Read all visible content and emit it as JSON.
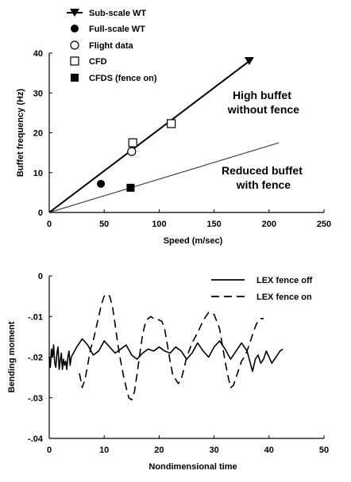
{
  "chart_data": [
    {
      "type": "scatter",
      "xlabel": "Speed (m/sec)",
      "ylabel": "Buffet frequency (Hz)",
      "xlim": [
        0,
        250
      ],
      "ylim": [
        0,
        40
      ],
      "xticks": [
        0,
        50,
        100,
        150,
        200,
        250
      ],
      "yticks": [
        0,
        10,
        20,
        30,
        40
      ],
      "grid": false,
      "legend_position": "top-left",
      "series": [
        {
          "name": "Sub-scale WT",
          "marker": "filled-triangle-down",
          "line": true,
          "x": [
            0,
            182
          ],
          "y": [
            0,
            38
          ]
        },
        {
          "name": "Full-scale WT",
          "marker": "filled-circle",
          "x": [
            47
          ],
          "y": [
            7.2
          ]
        },
        {
          "name": "Flight data",
          "marker": "open-circle",
          "x": [
            75
          ],
          "y": [
            15.3
          ]
        },
        {
          "name": "CFD",
          "marker": "open-square",
          "x": [
            76,
            111
          ],
          "y": [
            17.5,
            22.3
          ]
        },
        {
          "name": "CFDS (fence on)",
          "marker": "filled-square",
          "x": [
            74
          ],
          "y": [
            6.2
          ]
        }
      ],
      "reference_lines": [
        {
          "x": [
            0,
            209
          ],
          "y": [
            0,
            17.5
          ],
          "color": "#444444"
        }
      ],
      "annotations": [
        {
          "lines": [
            "High buffet",
            "without fence"
          ],
          "x": 195,
          "y": 28.5
        },
        {
          "lines": [
            "Reduced buffet",
            "with fence"
          ],
          "x": 195,
          "y": 9.6
        }
      ]
    },
    {
      "type": "line",
      "xlabel": "Nondimensional time",
      "ylabel": "Bending moment",
      "xlim": [
        0,
        50
      ],
      "ylim": [
        -0.04,
        0
      ],
      "xticks": [
        0,
        10,
        20,
        30,
        40,
        50
      ],
      "yticks": [
        0,
        -0.01,
        -0.02,
        -0.03,
        -0.04
      ],
      "ytick_labels": [
        "0",
        "-.01",
        "-.02",
        "-.03",
        "-.04"
      ],
      "grid": false,
      "legend_position": "top-right",
      "series": [
        {
          "name": "LEX fence off",
          "style": "solid",
          "x": [
            0,
            0.2,
            0.4,
            0.6,
            0.8,
            1.0,
            1.2,
            1.4,
            1.6,
            1.8,
            2.0,
            2.2,
            2.4,
            2.6,
            2.8,
            3.0,
            3.2,
            3.4,
            3.6,
            3.8,
            4.0,
            5,
            6,
            7,
            8,
            9,
            10,
            11,
            12,
            13,
            14,
            15,
            16,
            17,
            18,
            19,
            20,
            21,
            22,
            23,
            24,
            25,
            26,
            27,
            28,
            29,
            30,
            31,
            32,
            33,
            34,
            35,
            36,
            37,
            37.5,
            38,
            38.5,
            39,
            39.5,
            40,
            40.5,
            41,
            41.5,
            42,
            42.5
          ],
          "y": [
            -0.02,
            -0.0225,
            -0.018,
            -0.02,
            -0.017,
            -0.0215,
            -0.0225,
            -0.019,
            -0.0175,
            -0.023,
            -0.021,
            -0.019,
            -0.023,
            -0.0205,
            -0.022,
            -0.021,
            -0.023,
            -0.02,
            -0.0185,
            -0.022,
            -0.02,
            -0.0175,
            -0.0155,
            -0.017,
            -0.0195,
            -0.0185,
            -0.016,
            -0.0175,
            -0.019,
            -0.018,
            -0.017,
            -0.0195,
            -0.0205,
            -0.019,
            -0.018,
            -0.0185,
            -0.0175,
            -0.0185,
            -0.019,
            -0.0175,
            -0.0185,
            -0.0205,
            -0.019,
            -0.0165,
            -0.0185,
            -0.02,
            -0.0175,
            -0.016,
            -0.018,
            -0.0205,
            -0.0185,
            -0.0165,
            -0.0185,
            -0.0235,
            -0.0205,
            -0.0195,
            -0.0215,
            -0.0205,
            -0.0185,
            -0.02,
            -0.0215,
            -0.0205,
            -0.0195,
            -0.0185,
            -0.018
          ]
        },
        {
          "name": "LEX fence on",
          "style": "dashed",
          "x": [
            5.5,
            6,
            6.5,
            7,
            7.5,
            8,
            8.5,
            9,
            9.5,
            10,
            10.5,
            11,
            11.5,
            12,
            12.5,
            13,
            13.5,
            14,
            14.5,
            15,
            15.5,
            16,
            16.5,
            17,
            17.5,
            18,
            18.5,
            19,
            19.5,
            20,
            20.5,
            21,
            21.5,
            22,
            22.5,
            23,
            23.5,
            24,
            24.5,
            25,
            26,
            27,
            28,
            29,
            30,
            31,
            31.5,
            32,
            32.5,
            33,
            33.5,
            34,
            34.5,
            35,
            35.5,
            36,
            36.5,
            37,
            37.5,
            38,
            38.5,
            39
          ],
          "y": [
            -0.024,
            -0.0275,
            -0.0255,
            -0.022,
            -0.018,
            -0.016,
            -0.013,
            -0.01,
            -0.007,
            -0.005,
            -0.0045,
            -0.005,
            -0.0075,
            -0.012,
            -0.017,
            -0.021,
            -0.0245,
            -0.0275,
            -0.03,
            -0.0305,
            -0.0285,
            -0.024,
            -0.019,
            -0.0145,
            -0.0115,
            -0.0105,
            -0.01,
            -0.0105,
            -0.0108,
            -0.0108,
            -0.0112,
            -0.013,
            -0.017,
            -0.021,
            -0.0245,
            -0.0255,
            -0.0265,
            -0.0255,
            -0.023,
            -0.02,
            -0.0165,
            -0.014,
            -0.011,
            -0.009,
            -0.0095,
            -0.013,
            -0.017,
            -0.021,
            -0.0245,
            -0.0275,
            -0.027,
            -0.025,
            -0.023,
            -0.021,
            -0.02,
            -0.0185,
            -0.0165,
            -0.0145,
            -0.0125,
            -0.011,
            -0.0105,
            -0.0105
          ]
        }
      ]
    }
  ]
}
